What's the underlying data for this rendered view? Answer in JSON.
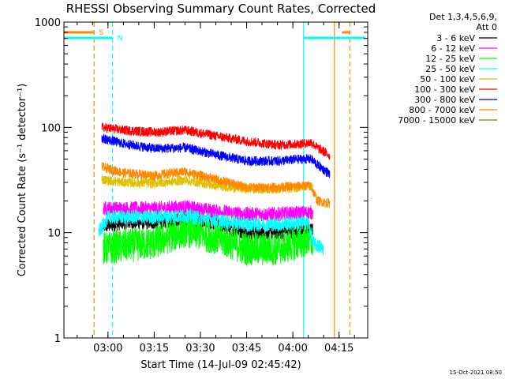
{
  "chart_data": {
    "type": "line",
    "title": "RHESSI Observing Summary Count Rates, Corrected",
    "xlabel": "Start Time (14-Jul-09 02:45:42)",
    "ylabel": "Corrected Count Rate (s⁻¹ detector⁻¹)",
    "y_scale": "log",
    "ylim": [
      1,
      1000
    ],
    "xlim_minutes": [
      165.7,
      264.3
    ],
    "x_ticks": [
      {
        "label": "03:00",
        "minutes": 180
      },
      {
        "label": "03:15",
        "minutes": 195
      },
      {
        "label": "03:30",
        "minutes": 210
      },
      {
        "label": "03:45",
        "minutes": 225
      },
      {
        "label": "04:00",
        "minutes": 240
      },
      {
        "label": "04:15",
        "minutes": 255
      }
    ],
    "y_ticks": [
      {
        "label": "1",
        "value": 1
      },
      {
        "label": "10",
        "value": 10
      },
      {
        "label": "100",
        "value": 100
      },
      {
        "label": "1000",
        "value": 1000
      }
    ],
    "legend_title_1": "Det 1,3,4,5,6,9,",
    "legend_title_2": "Att 0",
    "legend_position": "right",
    "series": [
      {
        "name": "3 - 6 keV",
        "color": "#000000",
        "noise": 0.03,
        "points": [
          [
            178.5,
            11.5
          ],
          [
            185,
            12.5
          ],
          [
            195,
            12.5
          ],
          [
            205,
            13.5
          ],
          [
            215,
            12
          ],
          [
            225,
            10
          ],
          [
            235,
            10
          ],
          [
            245,
            10.5
          ],
          [
            246.5,
            10.5
          ]
        ]
      },
      {
        "name": "6 - 12 keV",
        "color": "#ff00ff",
        "noise": 0.03,
        "points": [
          [
            178.5,
            17
          ],
          [
            185,
            17
          ],
          [
            195,
            17
          ],
          [
            205,
            17.5
          ],
          [
            215,
            16
          ],
          [
            225,
            15
          ],
          [
            235,
            15
          ],
          [
            245,
            15.5
          ],
          [
            246.5,
            15.5
          ]
        ]
      },
      {
        "name": "12 - 25 keV",
        "color": "#00ff00",
        "noise": 0.07,
        "points": [
          [
            178.5,
            7
          ],
          [
            185,
            7.5
          ],
          [
            195,
            8
          ],
          [
            205,
            10.5
          ],
          [
            215,
            9
          ],
          [
            225,
            7
          ],
          [
            235,
            7
          ],
          [
            245,
            8.5
          ],
          [
            246.5,
            8
          ]
        ]
      },
      {
        "name": "25 - 50 keV",
        "color": "#00ffff",
        "noise": 0.03,
        "points": [
          [
            177,
            10
          ],
          [
            180,
            14
          ],
          [
            185,
            14
          ],
          [
            195,
            14
          ],
          [
            205,
            14.5
          ],
          [
            215,
            13
          ],
          [
            225,
            12
          ],
          [
            235,
            12
          ],
          [
            245,
            12.5
          ],
          [
            246.5,
            8
          ],
          [
            250,
            7
          ]
        ]
      },
      {
        "name": "50 - 100 keV",
        "color": "#e0c000",
        "noise": 0.02,
        "points": [
          [
            178,
            32
          ],
          [
            185,
            30
          ],
          [
            195,
            29.5
          ],
          [
            205,
            31.5
          ],
          [
            215,
            28
          ],
          [
            225,
            26
          ],
          [
            235,
            26
          ],
          [
            245,
            27.5
          ],
          [
            246.5,
            27
          ]
        ]
      },
      {
        "name": "100 - 300 keV",
        "color": "#ff0000",
        "noise": 0.02,
        "points": [
          [
            178,
            100
          ],
          [
            185,
            94
          ],
          [
            195,
            90
          ],
          [
            205,
            94
          ],
          [
            215,
            83
          ],
          [
            225,
            74
          ],
          [
            235,
            68
          ],
          [
            243,
            70
          ],
          [
            246,
            72
          ],
          [
            248,
            64
          ],
          [
            252,
            54
          ]
        ]
      },
      {
        "name": "300 - 800 keV",
        "color": "#0000ff",
        "noise": 0.02,
        "points": [
          [
            178,
            79
          ],
          [
            185,
            70
          ],
          [
            195,
            63
          ],
          [
            205,
            64
          ],
          [
            215,
            55
          ],
          [
            225,
            48
          ],
          [
            235,
            48
          ],
          [
            243,
            50
          ],
          [
            246,
            50
          ],
          [
            248,
            44
          ],
          [
            252,
            36
          ]
        ]
      },
      {
        "name": "800 - 7000 keV",
        "color": "#ff8800",
        "noise": 0.02,
        "points": [
          [
            178,
            42
          ],
          [
            185,
            37
          ],
          [
            195,
            35
          ],
          [
            205,
            38
          ],
          [
            215,
            32
          ],
          [
            225,
            27
          ],
          [
            235,
            27
          ],
          [
            245,
            28
          ],
          [
            246,
            27
          ],
          [
            248,
            20
          ],
          [
            252,
            19
          ]
        ]
      },
      {
        "name": "7000 - 15000 keV",
        "color": "#a07000",
        "noise": 0.0,
        "points": []
      }
    ],
    "markers": [
      {
        "label": "S",
        "color": "#ff8800",
        "style": "dashed",
        "x_minutes": 175.5
      },
      {
        "label": "",
        "color": "#ff8800",
        "style": "solid",
        "x_minutes": 253.5
      },
      {
        "label": "",
        "color": "#ff8800",
        "style": "dashed",
        "x_minutes": 258.5
      },
      {
        "label": "N",
        "color": "#00ffff",
        "style": "dashed",
        "x_minutes": 181.5
      },
      {
        "label": "",
        "color": "#00ffff",
        "style": "solid",
        "x_minutes": 243.5
      }
    ]
  },
  "timestamp": "15-Oct-2021 08:50"
}
